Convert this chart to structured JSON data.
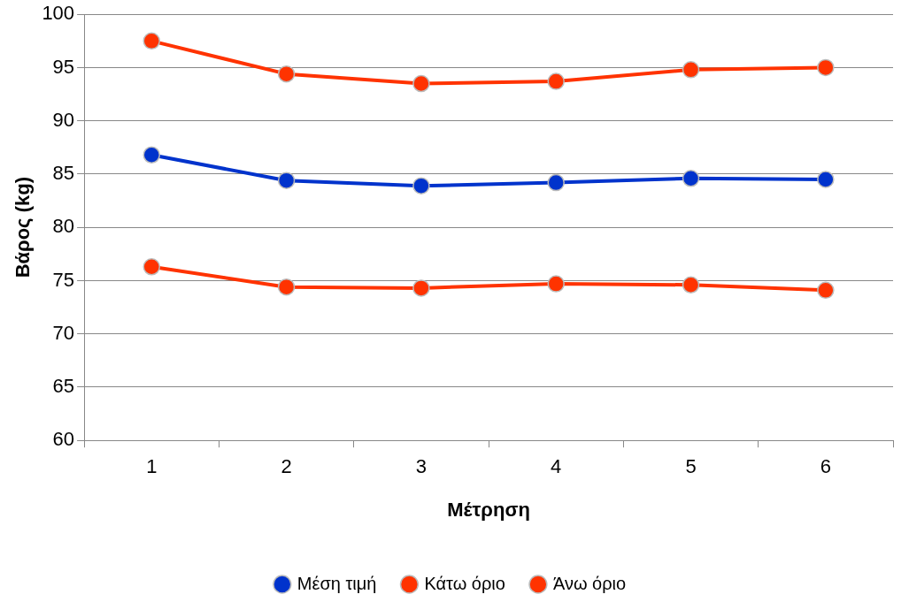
{
  "chart_data": {
    "type": "line",
    "xlabel": "Μέτρηση",
    "ylabel": "Βάρος (kg)",
    "categories": [
      "1",
      "2",
      "3",
      "4",
      "5",
      "6"
    ],
    "series": [
      {
        "name": "Μέση τιμή",
        "color": "#0033cc",
        "values": [
          86.8,
          84.4,
          83.9,
          84.2,
          84.6,
          84.5
        ]
      },
      {
        "name": "Κάτω όριο",
        "color": "#ff3300",
        "values": [
          76.3,
          74.4,
          74.3,
          74.7,
          74.6,
          74.1
        ]
      },
      {
        "name": "Άνω όριο",
        "color": "#ff3300",
        "values": [
          97.5,
          94.4,
          93.5,
          93.7,
          94.8,
          95.0
        ]
      }
    ],
    "ylim": [
      60,
      100
    ],
    "yticks": [
      60,
      65,
      70,
      75,
      80,
      85,
      90,
      95,
      100
    ],
    "grid": "y",
    "legend": "bottom",
    "marker": "circle",
    "line_style": "solid"
  }
}
